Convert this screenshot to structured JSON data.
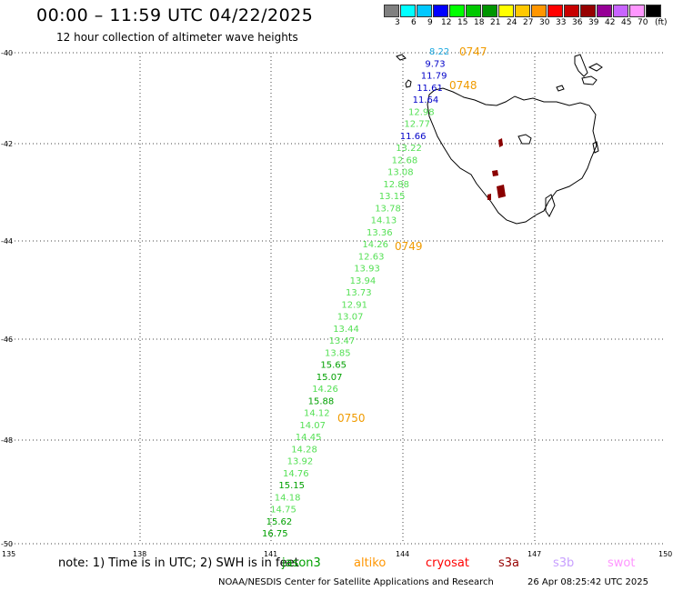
{
  "header": {
    "title": "00:00 – 11:59 UTC 04/22/2025",
    "subtitle": "12 hour collection of altimeter wave heights"
  },
  "scale": {
    "unit": "(ft)",
    "colors": [
      "#808080",
      "#00ffff",
      "#00c8ff",
      "#0000ff",
      "#00ff00",
      "#00c800",
      "#009600",
      "#ffff00",
      "#ffc800",
      "#ff9600",
      "#ff0000",
      "#c80000",
      "#960000",
      "#960096",
      "#c864ff",
      "#ff96ff",
      "#000000"
    ],
    "labels": [
      "3",
      "6",
      "9",
      "12",
      "15",
      "18",
      "21",
      "24",
      "27",
      "30",
      "33",
      "36",
      "39",
      "42",
      "45",
      "70"
    ]
  },
  "map": {
    "lat_ticks": [
      "-40",
      "-42",
      "-44",
      "-46",
      "-48",
      "-50"
    ],
    "lon_ticks": [
      "135",
      "138",
      "141",
      "144",
      "147",
      "150"
    ]
  },
  "track": [
    {
      "v": "8.22",
      "c": "#1aa8e0"
    },
    {
      "v": "9.73",
      "c": "#0000c8"
    },
    {
      "v": "11.79",
      "c": "#0000c8"
    },
    {
      "v": "11.61",
      "c": "#0000c8"
    },
    {
      "v": "11.64",
      "c": "#0000c8"
    },
    {
      "v": "12.98",
      "c": "#55e055"
    },
    {
      "v": "12.77",
      "c": "#55e055"
    },
    {
      "v": "11.66",
      "c": "#0000c8"
    },
    {
      "v": "13.22",
      "c": "#55e055"
    },
    {
      "v": "12.68",
      "c": "#55e055"
    },
    {
      "v": "13.08",
      "c": "#55e055"
    },
    {
      "v": "12.88",
      "c": "#55e055"
    },
    {
      "v": "13.15",
      "c": "#55e055"
    },
    {
      "v": "13.78",
      "c": "#55e055"
    },
    {
      "v": "14.13",
      "c": "#55e055"
    },
    {
      "v": "13.36",
      "c": "#55e055"
    },
    {
      "v": "14.26",
      "c": "#55e055"
    },
    {
      "v": "12.63",
      "c": "#55e055"
    },
    {
      "v": "13.93",
      "c": "#55e055"
    },
    {
      "v": "13.94",
      "c": "#55e055"
    },
    {
      "v": "13.73",
      "c": "#55e055"
    },
    {
      "v": "12.91",
      "c": "#55e055"
    },
    {
      "v": "13.07",
      "c": "#55e055"
    },
    {
      "v": "13.44",
      "c": "#55e055"
    },
    {
      "v": "13.47",
      "c": "#55e055"
    },
    {
      "v": "13.85",
      "c": "#55e055"
    },
    {
      "v": "15.65",
      "c": "#00a000"
    },
    {
      "v": "15.07",
      "c": "#00a000"
    },
    {
      "v": "14.26",
      "c": "#55e055"
    },
    {
      "v": "15.88",
      "c": "#00a000"
    },
    {
      "v": "14.12",
      "c": "#55e055"
    },
    {
      "v": "14.07",
      "c": "#55e055"
    },
    {
      "v": "14.45",
      "c": "#55e055"
    },
    {
      "v": "14.28",
      "c": "#55e055"
    },
    {
      "v": "13.92",
      "c": "#55e055"
    },
    {
      "v": "14.76",
      "c": "#55e055"
    },
    {
      "v": "15.15",
      "c": "#00a000"
    },
    {
      "v": "14.18",
      "c": "#55e055"
    },
    {
      "v": "14.75",
      "c": "#55e055"
    },
    {
      "v": "15.62",
      "c": "#00a000"
    },
    {
      "v": "16.75",
      "c": "#00a000"
    }
  ],
  "times": [
    "0747",
    "0748",
    "0749",
    "0750"
  ],
  "note": "note: 1) Time is in UTC; 2) SWH is in feet",
  "satellites": [
    {
      "name": "jason3",
      "color": "#00a000"
    },
    {
      "name": "altiko",
      "color": "#ff9600"
    },
    {
      "name": "cryosat",
      "color": "#ff0000"
    },
    {
      "name": "s3a",
      "color": "#960000"
    },
    {
      "name": "s3b",
      "color": "#c8a0ff"
    },
    {
      "name": "swot",
      "color": "#ff96ff"
    }
  ],
  "footer": {
    "credit": "NOAA/NESDIS Center for Satellite Applications and Research",
    "timestamp": "26 Apr 08:25:42 UTC 2025"
  }
}
